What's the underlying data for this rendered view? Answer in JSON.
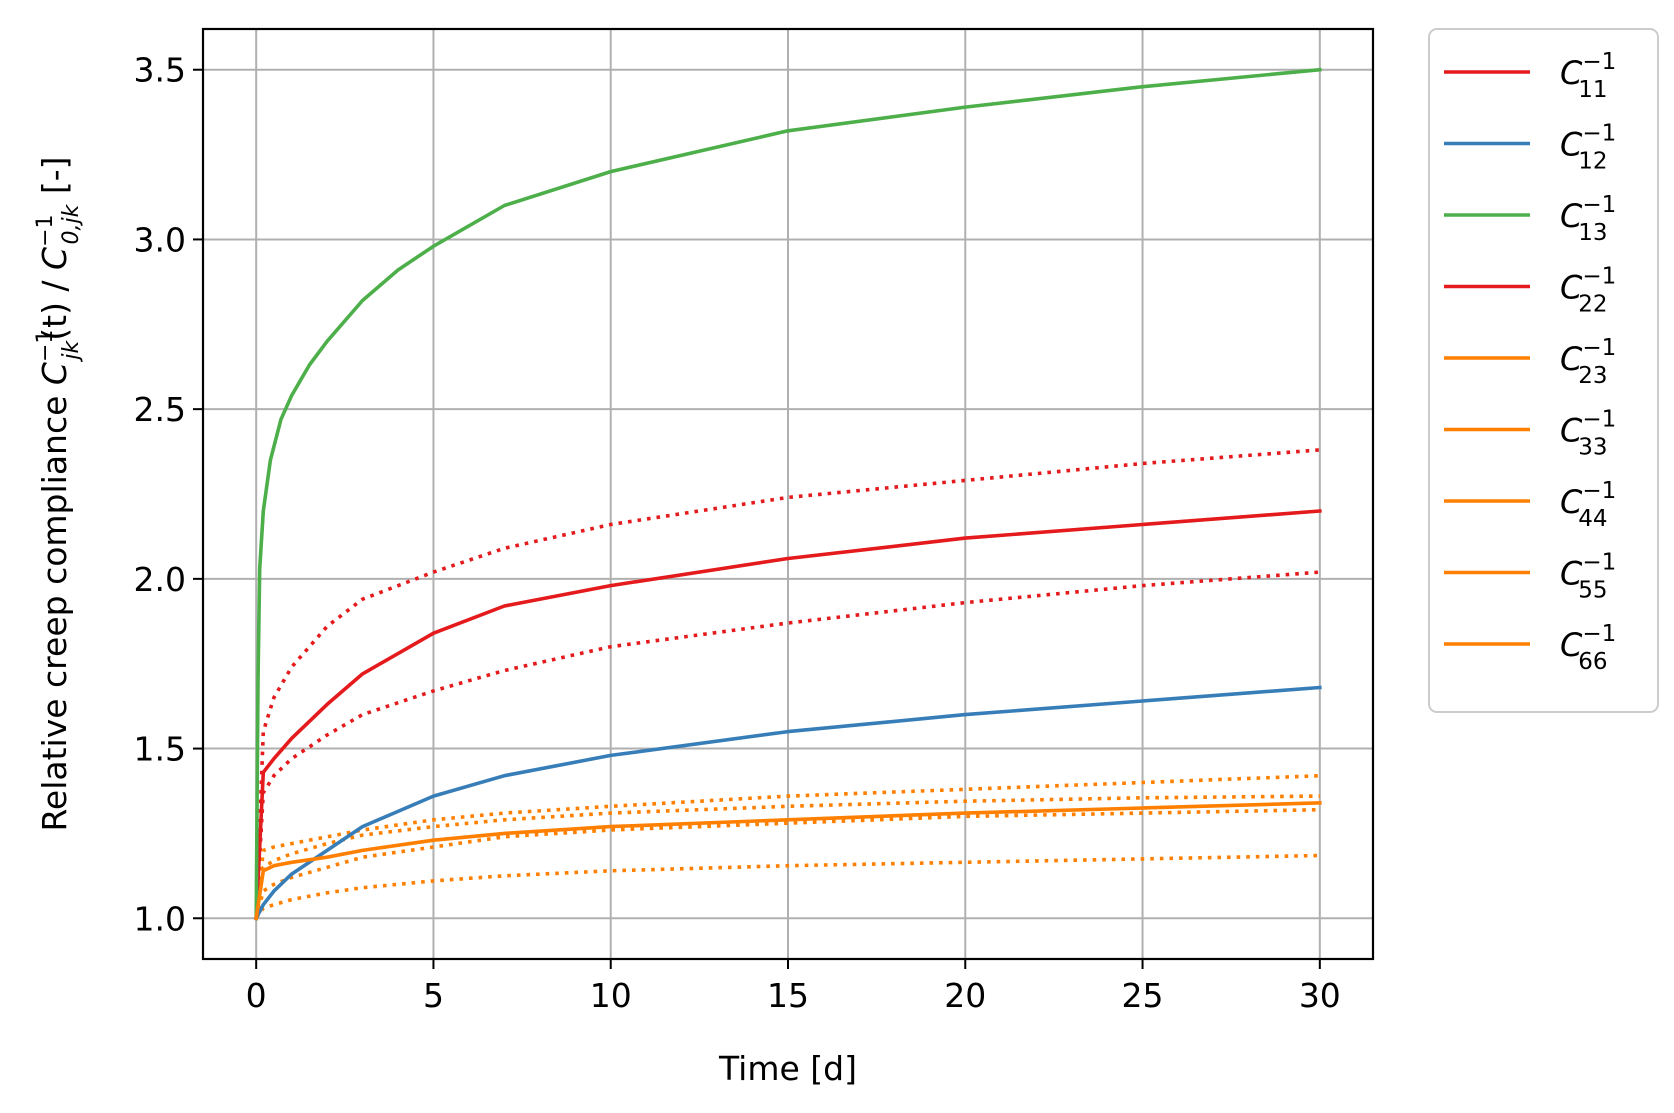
{
  "chart_data": {
    "type": "line",
    "xlabel": "Time [d]",
    "ylabel": "Relative creep compliance C_{jk}^{-1}(t) / C_{0,jk}^{-1} [-]",
    "ylabel_parts": {
      "prefix": "Relative creep compliance ",
      "sym1": "C",
      "sub1": "jk",
      "sup1": "−1",
      "arg": "(t) / ",
      "sym2": "C",
      "sub2": "0,jk",
      "sup2": "−1",
      "suffix": " [-]"
    },
    "xlim": [
      -1.5,
      31.5
    ],
    "ylim": [
      0.88,
      3.62
    ],
    "xticks": [
      0,
      5,
      10,
      15,
      20,
      25,
      30
    ],
    "xtick_labels": [
      "0",
      "5",
      "10",
      "15",
      "20",
      "25",
      "30"
    ],
    "yticks": [
      1.0,
      1.5,
      2.0,
      2.5,
      3.0,
      3.5
    ],
    "ytick_labels": [
      "1.0",
      "1.5",
      "2.0",
      "2.5",
      "3.0",
      "3.5"
    ],
    "grid": true,
    "legend_position": "outside-right",
    "series": [
      {
        "name": "C11^-1",
        "sym": "C",
        "sub": "11",
        "sup": "−1",
        "color": "#e41a1c",
        "style": "solid",
        "points": [
          [
            0,
            1.0
          ],
          [
            0.2,
            1.43
          ],
          [
            0.5,
            1.47
          ],
          [
            1,
            1.53
          ],
          [
            2,
            1.63
          ],
          [
            3,
            1.72
          ],
          [
            5,
            1.84
          ],
          [
            7,
            1.92
          ],
          [
            10,
            1.98
          ],
          [
            15,
            2.06
          ],
          [
            20,
            2.12
          ],
          [
            25,
            2.16
          ],
          [
            30,
            2.2
          ]
        ]
      },
      {
        "name": "C12^-1",
        "sym": "C",
        "sub": "12",
        "sup": "−1",
        "color": "#377eb8",
        "style": "solid",
        "points": [
          [
            0,
            1.0
          ],
          [
            0.2,
            1.04
          ],
          [
            0.5,
            1.08
          ],
          [
            1,
            1.13
          ],
          [
            2,
            1.2
          ],
          [
            3,
            1.27
          ],
          [
            5,
            1.36
          ],
          [
            7,
            1.42
          ],
          [
            10,
            1.48
          ],
          [
            15,
            1.55
          ],
          [
            20,
            1.6
          ],
          [
            25,
            1.64
          ],
          [
            30,
            1.68
          ]
        ]
      },
      {
        "name": "C13^-1",
        "sym": "C",
        "sub": "13",
        "sup": "−1",
        "color": "#4daf4a",
        "style": "solid",
        "points": [
          [
            0,
            1.0
          ],
          [
            0.05,
            1.7
          ],
          [
            0.1,
            2.03
          ],
          [
            0.2,
            2.2
          ],
          [
            0.4,
            2.35
          ],
          [
            0.7,
            2.47
          ],
          [
            1,
            2.54
          ],
          [
            1.5,
            2.63
          ],
          [
            2,
            2.7
          ],
          [
            3,
            2.82
          ],
          [
            4,
            2.91
          ],
          [
            5,
            2.98
          ],
          [
            7,
            3.1
          ],
          [
            10,
            3.2
          ],
          [
            15,
            3.32
          ],
          [
            20,
            3.39
          ],
          [
            25,
            3.45
          ],
          [
            30,
            3.5
          ]
        ]
      },
      {
        "name": "C22^-1",
        "sym": "C",
        "sub": "22",
        "sup": "−1",
        "color": "#e41a1c",
        "style": "solid",
        "points": []
      },
      {
        "name": "C23^-1",
        "sym": "C",
        "sub": "23",
        "sup": "−1",
        "color": "#ff7f00",
        "style": "solid",
        "points": [
          [
            0,
            1.0
          ],
          [
            0.2,
            1.14
          ],
          [
            0.5,
            1.155
          ],
          [
            1,
            1.165
          ],
          [
            2,
            1.18
          ],
          [
            3,
            1.2
          ],
          [
            5,
            1.23
          ],
          [
            7,
            1.25
          ],
          [
            10,
            1.27
          ],
          [
            15,
            1.29
          ],
          [
            20,
            1.31
          ],
          [
            25,
            1.325
          ],
          [
            30,
            1.34
          ]
        ]
      },
      {
        "name": "C33^-1",
        "sym": "C",
        "sub": "33",
        "sup": "−1",
        "color": "#ff7f00",
        "style": "solid",
        "points": []
      },
      {
        "name": "C44^-1",
        "sym": "C",
        "sub": "44",
        "sup": "−1",
        "color": "#ff7f00",
        "style": "solid",
        "points": []
      },
      {
        "name": "C55^-1",
        "sym": "C",
        "sub": "55",
        "sup": "−1",
        "color": "#ff7f00",
        "style": "solid",
        "points": []
      },
      {
        "name": "C66^-1",
        "sym": "C",
        "sub": "66",
        "sup": "−1",
        "color": "#ff7f00",
        "style": "solid",
        "points": []
      }
    ],
    "dotted_series": [
      {
        "color": "#e41a1c",
        "points": [
          [
            0,
            1.0
          ],
          [
            0.2,
            1.55
          ],
          [
            0.5,
            1.65
          ],
          [
            1,
            1.74
          ],
          [
            2,
            1.86
          ],
          [
            3,
            1.94
          ],
          [
            5,
            2.02
          ],
          [
            7,
            2.09
          ],
          [
            10,
            2.16
          ],
          [
            15,
            2.24
          ],
          [
            20,
            2.29
          ],
          [
            25,
            2.34
          ],
          [
            30,
            2.38
          ]
        ]
      },
      {
        "color": "#e41a1c",
        "points": [
          [
            0,
            1.0
          ],
          [
            0.2,
            1.37
          ],
          [
            0.5,
            1.42
          ],
          [
            1,
            1.47
          ],
          [
            2,
            1.54
          ],
          [
            3,
            1.6
          ],
          [
            5,
            1.67
          ],
          [
            7,
            1.73
          ],
          [
            10,
            1.8
          ],
          [
            15,
            1.87
          ],
          [
            20,
            1.93
          ],
          [
            25,
            1.98
          ],
          [
            30,
            2.02
          ]
        ]
      },
      {
        "color": "#ff7f00",
        "points": [
          [
            0,
            1.0
          ],
          [
            0.2,
            1.2
          ],
          [
            0.5,
            1.21
          ],
          [
            1,
            1.22
          ],
          [
            2,
            1.24
          ],
          [
            3,
            1.26
          ],
          [
            5,
            1.29
          ],
          [
            7,
            1.31
          ],
          [
            10,
            1.33
          ],
          [
            15,
            1.36
          ],
          [
            20,
            1.38
          ],
          [
            25,
            1.4
          ],
          [
            30,
            1.42
          ]
        ]
      },
      {
        "color": "#ff7f00",
        "points": [
          [
            0,
            1.0
          ],
          [
            0.2,
            1.15
          ],
          [
            0.5,
            1.17
          ],
          [
            1,
            1.19
          ],
          [
            2,
            1.22
          ],
          [
            3,
            1.245
          ],
          [
            5,
            1.27
          ],
          [
            7,
            1.29
          ],
          [
            10,
            1.31
          ],
          [
            15,
            1.33
          ],
          [
            20,
            1.345
          ],
          [
            25,
            1.355
          ],
          [
            30,
            1.36
          ]
        ]
      },
      {
        "color": "#ff7f00",
        "points": [
          [
            0,
            1.0
          ],
          [
            0.2,
            1.08
          ],
          [
            0.5,
            1.1
          ],
          [
            1,
            1.12
          ],
          [
            2,
            1.15
          ],
          [
            3,
            1.18
          ],
          [
            5,
            1.21
          ],
          [
            7,
            1.24
          ],
          [
            10,
            1.26
          ],
          [
            15,
            1.28
          ],
          [
            20,
            1.3
          ],
          [
            25,
            1.31
          ],
          [
            30,
            1.32
          ]
        ]
      },
      {
        "color": "#ff7f00",
        "points": [
          [
            0,
            1.0
          ],
          [
            0.2,
            1.03
          ],
          [
            0.5,
            1.04
          ],
          [
            1,
            1.055
          ],
          [
            2,
            1.075
          ],
          [
            3,
            1.09
          ],
          [
            5,
            1.11
          ],
          [
            7,
            1.125
          ],
          [
            10,
            1.14
          ],
          [
            15,
            1.155
          ],
          [
            20,
            1.165
          ],
          [
            25,
            1.175
          ],
          [
            30,
            1.185
          ]
        ]
      }
    ]
  }
}
